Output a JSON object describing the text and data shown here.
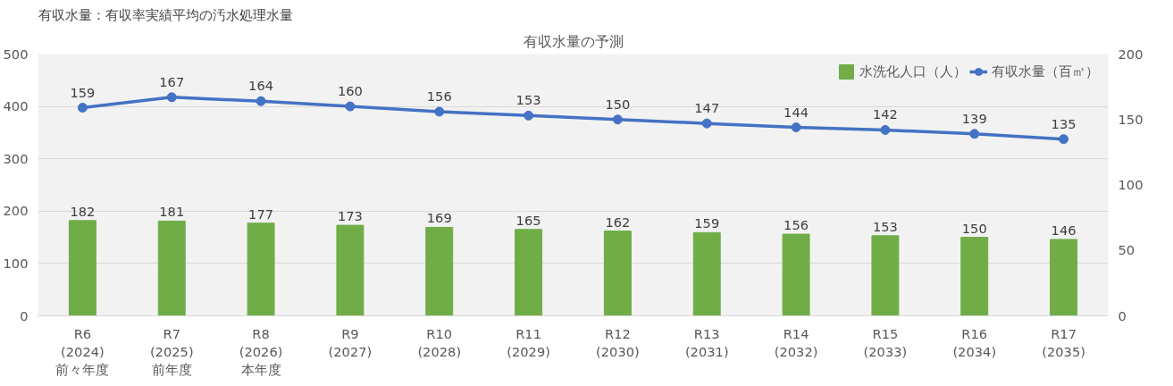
{
  "chart_data": {
    "type": "bar",
    "title": "有収水量の予測",
    "annotations": [
      "有収水量：有収率実績平均の汚水処理水量"
    ],
    "categories": [
      "R6\n(2024)\n前々年度",
      "R7\n(2025)\n前年度",
      "R8\n(2026)\n本年度",
      "R9\n(2027)",
      "R10\n(2028)",
      "R11\n(2029)",
      "R12\n(2030)",
      "R13\n(2031)",
      "R14\n(2032)",
      "R15\n(2033)",
      "R16\n(2034)",
      "R17\n(2035)"
    ],
    "series": [
      {
        "name": "水洗化人口（人）",
        "color": "#70ad47",
        "values": [
          182,
          181,
          177,
          173,
          169,
          165,
          162,
          159,
          156,
          153,
          150,
          146
        ]
      },
      {
        "name": "有収水量（百㎥）",
        "type": "line",
        "axis": "y2",
        "color": "#4472c4",
        "marker": "circle",
        "values": [
          159,
          167,
          164,
          160,
          156,
          153,
          150,
          147,
          144,
          142,
          139,
          135
        ]
      }
    ],
    "ylim": [
      0,
      500
    ],
    "yticks": [
      0,
      100,
      200,
      300,
      400,
      500
    ],
    "y2lim": [
      0,
      200
    ],
    "y2ticks": [
      0,
      50,
      100,
      150,
      200
    ],
    "grid": "y",
    "legend": "top right",
    "data_labels": true
  }
}
